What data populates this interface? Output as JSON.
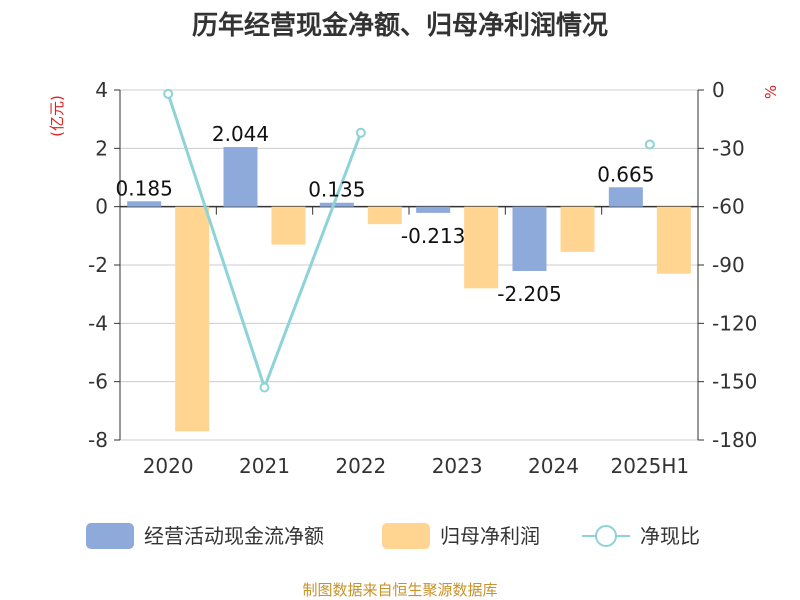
{
  "chart_data": {
    "type": "bar",
    "title": "历年经营现金净额、归母净利润情况",
    "categories": [
      "2020",
      "2021",
      "2022",
      "2023",
      "2024",
      "2025H1"
    ],
    "series": [
      {
        "name": "经营活动现金流净额",
        "type": "bar",
        "axis": "left",
        "values": [
          0.185,
          2.044,
          0.135,
          -0.213,
          -2.205,
          0.665
        ],
        "labels": [
          "0.185",
          "2.044",
          "0.135",
          "-0.213",
          "-2.205",
          "0.665"
        ],
        "color": "#8eaadb"
      },
      {
        "name": "归母净利润",
        "type": "bar",
        "axis": "left",
        "values": [
          -7.7,
          -1.3,
          -0.6,
          -2.8,
          -1.55,
          -2.3
        ],
        "color": "#ffd591"
      },
      {
        "name": "净现比",
        "type": "line",
        "axis": "right",
        "values": [
          -2,
          -153,
          -22,
          null,
          null,
          -28
        ],
        "color": "#8dd3d8"
      }
    ],
    "y_left": {
      "label": "(亿元)",
      "min": -8,
      "max": 4,
      "ticks": [
        "4",
        "2",
        "0",
        "-2",
        "-4",
        "-6",
        "-8"
      ]
    },
    "y_right": {
      "label": "%",
      "min": -180,
      "max": 0,
      "ticks": [
        "0",
        "-30",
        "-60",
        "-90",
        "-120",
        "-150",
        "-180"
      ]
    },
    "grid": true,
    "legend_position": "bottom"
  },
  "footer": {
    "source": "制图数据来自恒生聚源数据库"
  }
}
